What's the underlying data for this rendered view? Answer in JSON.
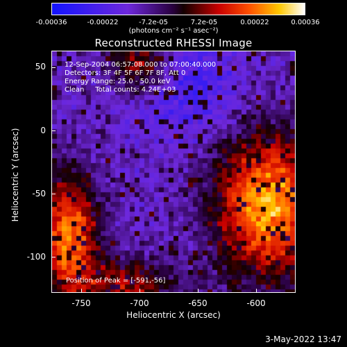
{
  "colorbar": {
    "ticks": [
      "-0.00036",
      "-0.00022",
      "-7.2e-05",
      "7.2e-05",
      "0.00022",
      "0.00036"
    ],
    "units": "(photons cm⁻² s⁻¹ asec⁻²)"
  },
  "title": "Reconstructed RHESSI Image",
  "info": {
    "line1": "12-Sep-2004 06:57:08.000 to 07:00:40.000",
    "line2": "Detectors: 3F 4F 5F 6F 7F 8F, Att 0",
    "line3": "Energy Range: 25.0 - 50.0 keV",
    "line4": "Clean     Total counts: 4.24E+03",
    "peak": "Position of Peak = [-591,-56]"
  },
  "axes": {
    "xlabel": "Heliocentric X (arcsec)",
    "ylabel": "Heliocentric Y (arcsec)",
    "xticks": [
      "-750",
      "-700",
      "-650",
      "-600"
    ],
    "yticks": [
      "50",
      "0",
      "-50",
      "-100"
    ]
  },
  "timestamp": "3-May-2022 13:47"
}
